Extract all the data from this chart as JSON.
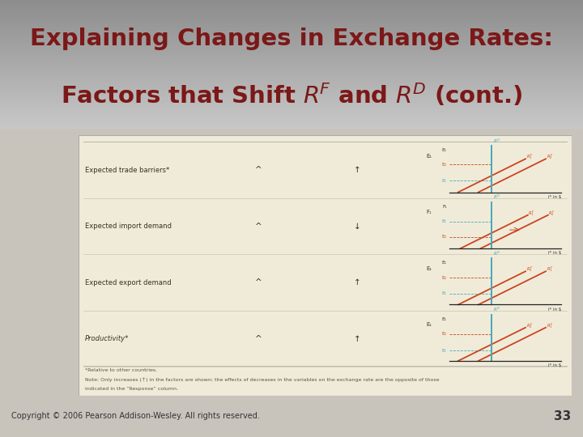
{
  "title_line1": "Explaining Changes in Exchange Rates:",
  "title_line2": "Factors that Shift $R^F$ and $R^D$ (cont.)",
  "title_color": "#7B1818",
  "title_fontsize": 21,
  "header_bg": "#B8B0A0",
  "slide_bg": "#C8C4BC",
  "table_bg": "#F0EBD8",
  "copyright_text": "Copyright © 2006 Pearson Addison-Wesley. All rights reserved.",
  "page_number": "33",
  "rows": [
    {
      "label": "Expected trade barriers*",
      "col2": "^",
      "col3": "↑",
      "col4": "E₁",
      "chart_type": "trade_barriers"
    },
    {
      "label": "Expected import demand",
      "col2": "^",
      "col3": "↓",
      "col4": "F₁",
      "chart_type": "import_demand"
    },
    {
      "label": "Expected export demand",
      "col2": "^",
      "col3": "↑",
      "col4": "E₁",
      "chart_type": "export_demand"
    },
    {
      "label": "Productivity*",
      "col2": "^",
      "col3": "↑",
      "col4": "E₁",
      "chart_type": "productivity"
    }
  ],
  "footnote1": "*Relative to other countries.",
  "footnote2": "Note: Only increases (↑) in the factors are shown; the effects of decreases in the variables on the exchange rate are the opposite of those",
  "footnote3": "indicated in the “Response” column.",
  "red_color": "#CC4422",
  "blue_color": "#44AABB",
  "dark_color": "#555544"
}
